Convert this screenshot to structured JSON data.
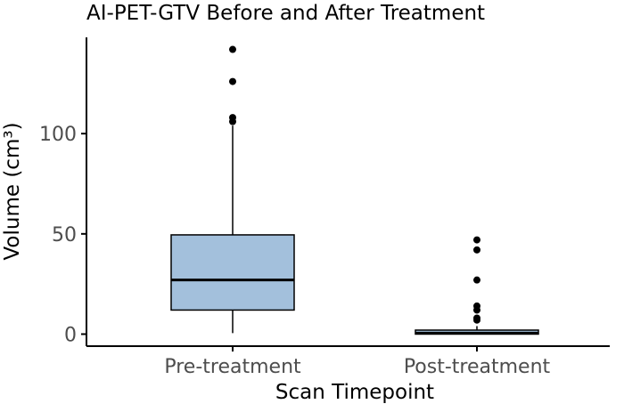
{
  "chart_data": {
    "type": "box",
    "title": "AI-PET-GTV Before and After Treatment",
    "xlabel": "Scan Timepoint",
    "ylabel": "Volume (cm³)",
    "categories": [
      "Pre-treatment",
      "Post-treatment"
    ],
    "ylim": [
      -6,
      148
    ],
    "yticks": [
      0,
      50,
      100
    ],
    "ytick_labels": [
      "0",
      "50",
      "100"
    ],
    "grid": false,
    "boxes": [
      {
        "category": "Pre-treatment",
        "whisker_low": 0.5,
        "q1": 12,
        "median": 27,
        "q3": 49.5,
        "whisker_high": 104,
        "outliers": [
          142,
          126,
          108,
          106
        ]
      },
      {
        "category": "Post-treatment",
        "whisker_low": 0,
        "q1": 0,
        "median": 0.5,
        "q3": 2,
        "whisker_high": 4,
        "outliers": [
          47,
          42,
          27,
          14,
          12,
          8,
          7
        ]
      }
    ],
    "colors": {
      "box_fill": "#a3c0dc",
      "box_stroke": "#000000",
      "point": "#000000",
      "axis": "#000000",
      "tick_label": "#4d4d4d",
      "title": "#000000"
    }
  }
}
